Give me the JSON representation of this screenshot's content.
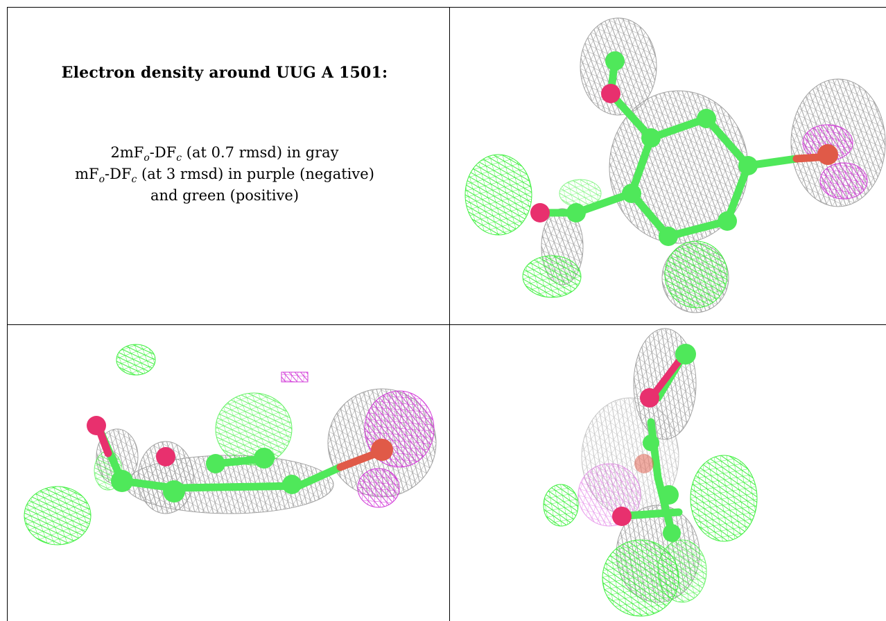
{
  "caption": {
    "title": "Electron density around UUG A 1501:",
    "line1_prefix": "2mF",
    "line1_sub_o": "o",
    "line1_mid": "-DF",
    "line1_sub_c": "c",
    "line1_suffix": " (at 0.7 rmsd) in gray",
    "line2_prefix": "mF",
    "line2_sub_o": "o",
    "line2_mid": "-DF",
    "line2_sub_c": "c",
    "line2_suffix": " (at 3 rmsd) in purple (negative)",
    "line3": "and green (positive)"
  },
  "colors": {
    "carbon": "#4fe85a",
    "oxygen": "#e8306e",
    "mesh_gray": "#9a9a9a",
    "mesh_green": "#3ef03e",
    "mesh_purple": "#d23ad8",
    "bond_red": "#e05a48"
  }
}
